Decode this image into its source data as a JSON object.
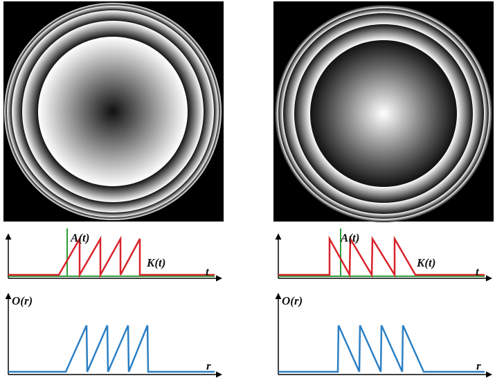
{
  "panels": [
    {
      "top": {
        "signal_label": "A(t)",
        "kernel_label": "K(t)",
        "axis_label": "t"
      },
      "bottom": {
        "output_label": "O(r)",
        "axis_label": "r"
      }
    },
    {
      "top": {
        "signal_label": "A(t)",
        "kernel_label": "K(t)",
        "axis_label": "t"
      },
      "bottom": {
        "output_label": "O(r)",
        "axis_label": "r"
      }
    }
  ]
}
